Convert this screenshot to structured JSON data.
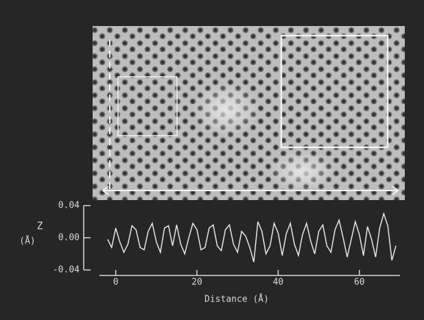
{
  "chart_data": {
    "type": "line",
    "ylabel": "Z",
    "yunit": "(Å)",
    "xlabel": "Distance (Å)",
    "x": [
      -2,
      -1,
      0,
      1,
      2,
      3,
      4,
      5,
      6,
      7,
      8,
      9,
      10,
      11,
      12,
      13,
      14,
      15,
      16,
      17,
      18,
      19,
      20,
      21,
      22,
      23,
      24,
      25,
      26,
      27,
      28,
      29,
      30,
      31,
      32,
      33,
      34,
      35,
      36,
      37,
      38,
      39,
      40,
      41,
      42,
      43,
      44,
      45,
      46,
      47,
      48,
      49,
      50,
      51,
      52,
      53,
      54,
      55,
      56,
      57,
      58,
      59,
      60,
      61,
      62,
      63,
      64,
      65,
      66,
      67,
      68,
      69
    ],
    "series": [
      {
        "color": "#e8e8e8",
        "values": [
          -0.002,
          -0.012,
          0.012,
          -0.005,
          -0.018,
          -0.008,
          0.015,
          0.01,
          -0.012,
          -0.015,
          0.008,
          0.018,
          -0.005,
          -0.018,
          0.012,
          0.015,
          -0.01,
          0.016,
          -0.008,
          -0.02,
          0.0,
          0.018,
          0.01,
          -0.015,
          -0.012,
          0.012,
          0.016,
          -0.01,
          -0.016,
          0.01,
          0.016,
          -0.008,
          -0.018,
          0.008,
          0.002,
          -0.012,
          -0.03,
          0.02,
          0.008,
          -0.02,
          -0.01,
          0.018,
          0.006,
          -0.022,
          0.005,
          0.018,
          -0.008,
          -0.022,
          0.004,
          0.018,
          -0.004,
          -0.02,
          0.008,
          0.016,
          -0.01,
          -0.018,
          0.01,
          0.022,
          0.0,
          -0.024,
          -0.002,
          0.02,
          0.004,
          -0.022,
          0.014,
          -0.002,
          -0.024,
          0.012,
          0.03,
          0.015,
          -0.028,
          -0.01
        ]
      }
    ],
    "xlim": [
      -4,
      70
    ],
    "xticks": [
      0,
      20,
      40,
      60
    ],
    "ylim": [
      -0.04,
      0.04
    ],
    "yticks": [
      -0.04,
      {
        "value": 0,
        "label": "0.00"
      },
      0.04
    ]
  }
}
